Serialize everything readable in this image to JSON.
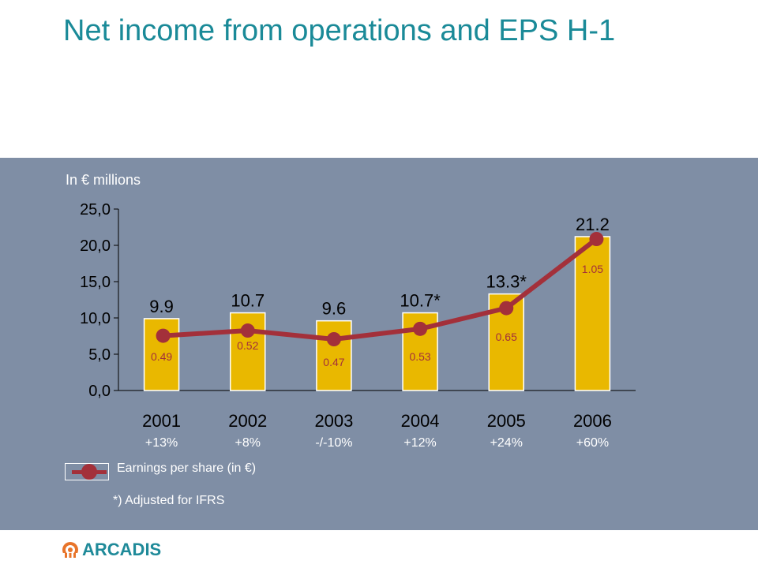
{
  "title": "Net income from operations and EPS H-1",
  "unit_label": "In € millions",
  "legend": {
    "label": "Earnings per share  (in €)"
  },
  "footnote": "*) Adjusted for  IFRS",
  "logo": {
    "text": "ARCADIS"
  },
  "colors": {
    "bar": "#e9b800",
    "line": "#a3303a",
    "title": "#1a8a98",
    "panel": "#7f8ea5"
  },
  "chart_data": {
    "type": "bar",
    "categories": [
      "2001",
      "2002",
      "2003",
      "2004",
      "2005",
      "2006"
    ],
    "series": [
      {
        "values": [
          9.9,
          10.7,
          9.6,
          10.7,
          13.3,
          21.2
        ]
      },
      {
        "name": "Earnings per share  (in €)",
        "type": "line",
        "values": [
          0.49,
          0.52,
          0.47,
          0.53,
          0.65,
          1.05
        ]
      }
    ],
    "bar_labels": [
      "9.9",
      "10.7",
      "9.6",
      "10.7*",
      "13.3*",
      "21.2"
    ],
    "eps_labels": [
      "0.49",
      "0.52",
      "0.47",
      "0.53",
      "0.65",
      "1.05"
    ],
    "growth_labels": [
      "+13%",
      "+8%",
      "-/-10%",
      "+12%",
      "+24%",
      "+60%"
    ],
    "y_ticks": [
      "0,0",
      "5,0",
      "10,0",
      "15,0",
      "20,0",
      "25,0"
    ],
    "ylim": [
      0,
      25
    ],
    "grid": false,
    "legend_position": "bottom-left"
  }
}
